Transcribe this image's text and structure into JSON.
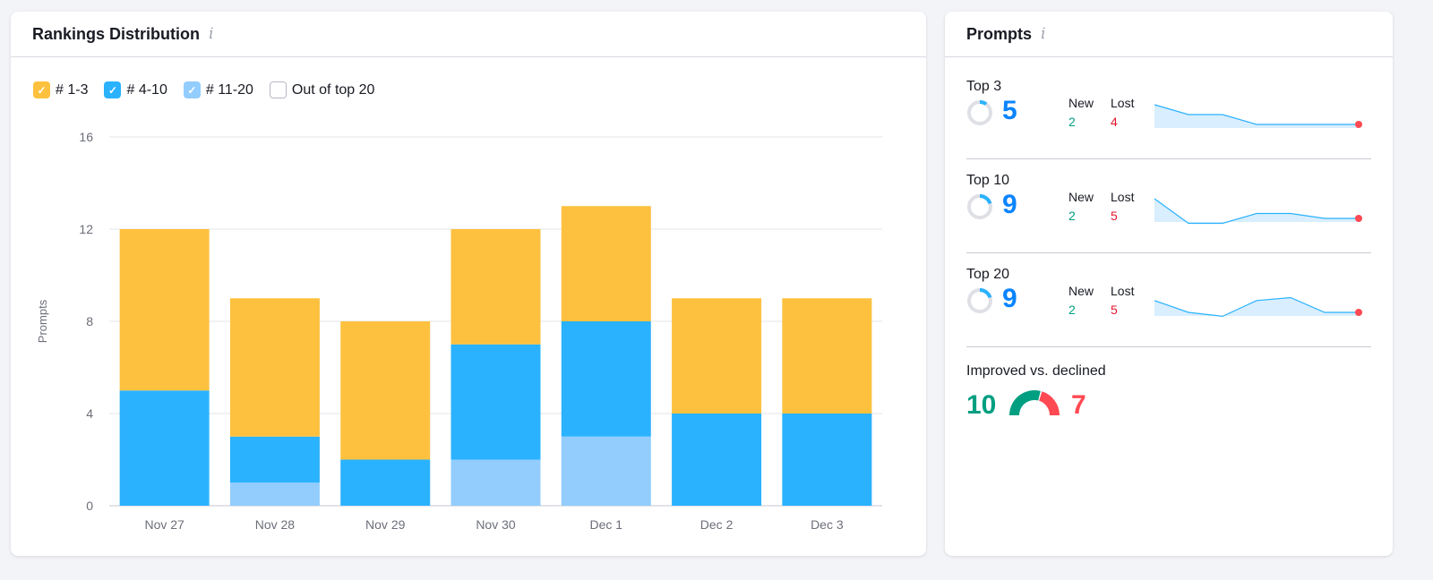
{
  "left": {
    "title": "Rankings Distribution",
    "info_icon": "info-icon"
  },
  "legend": [
    {
      "label": "# 1-3",
      "color": "#fdc13f",
      "checked": true
    },
    {
      "label": "# 4-10",
      "color": "#2ab2fe",
      "checked": true
    },
    {
      "label": "# 11-20",
      "color": "#92cdfe",
      "checked": true
    },
    {
      "label": "Out of top 20",
      "color": "#ffffff",
      "checked": false
    }
  ],
  "chart_data": {
    "type": "bar",
    "stacked": true,
    "ylabel": "Prompts",
    "ylim": [
      0,
      16
    ],
    "yticks": [
      "0",
      "4",
      "8",
      "12",
      "16"
    ],
    "grid": true,
    "categories": [
      "Nov 27",
      "Nov 28",
      "Nov 29",
      "Nov 30",
      "Dec 1",
      "Dec 2",
      "Dec 3"
    ],
    "series": [
      {
        "name": "# 11-20",
        "color": "#92cdfe",
        "values": [
          0,
          1,
          0,
          2,
          3,
          0,
          0
        ]
      },
      {
        "name": "# 4-10",
        "color": "#2ab2fe",
        "values": [
          5,
          2,
          2,
          5,
          5,
          4,
          4
        ]
      },
      {
        "name": "# 1-3",
        "color": "#fdc13f",
        "values": [
          7,
          6,
          6,
          5,
          5,
          5,
          5
        ]
      }
    ]
  },
  "right": {
    "title": "Prompts",
    "rows": [
      {
        "label": "Top 3",
        "value": "5",
        "fraction": 0.1,
        "new_label": "New",
        "new": "2",
        "lost_label": "Lost",
        "lost": "4",
        "spark": [
          7,
          6,
          6,
          5,
          5,
          5,
          5
        ]
      },
      {
        "label": "Top 10",
        "value": "9",
        "fraction": 0.2,
        "new_label": "New",
        "new": "2",
        "lost_label": "Lost",
        "lost": "5",
        "spark": [
          11,
          8.5,
          8.5,
          9.5,
          9.5,
          9,
          9
        ]
      },
      {
        "label": "Top 20",
        "value": "9",
        "fraction": 0.2,
        "new_label": "New",
        "new": "2",
        "lost_label": "Lost",
        "lost": "5",
        "spark": [
          10.2,
          9,
          8.6,
          10.2,
          10.5,
          9,
          9
        ]
      }
    ],
    "improved": {
      "label": "Improved vs. declined",
      "improved": "10",
      "declined": "7",
      "improved_color": "#009f81",
      "declined_color": "#ff4953"
    }
  }
}
